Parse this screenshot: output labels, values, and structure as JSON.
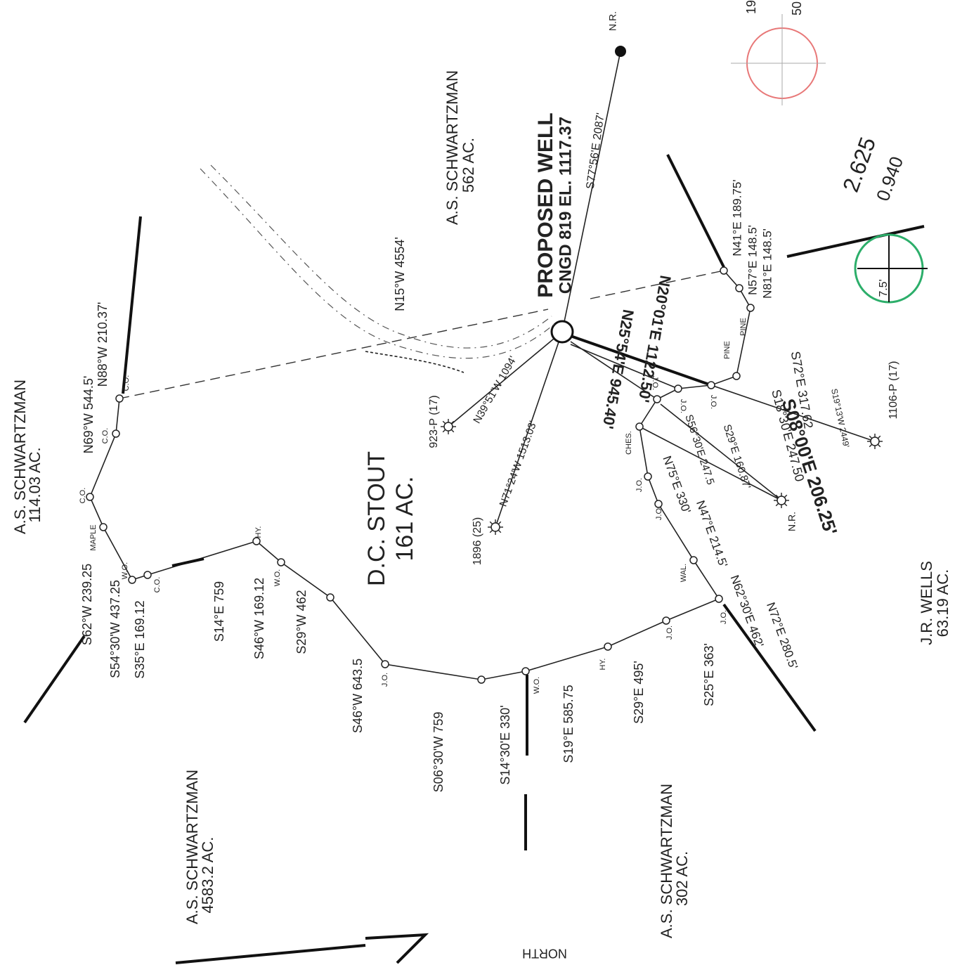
{
  "tracts": [
    {
      "name": "A.S. SCHWARTZMAN",
      "area": "562 AC."
    },
    {
      "name": "A.S. SCHWARTZMAN",
      "area": "114.03 AC."
    },
    {
      "name": "D.C. STOUT",
      "area": "161 AC."
    },
    {
      "name": "A.S. SCHWARTZMAN",
      "area": "4583.2 AC."
    },
    {
      "name": "A.S. SCHWARTZMAN",
      "area": "302 AC."
    },
    {
      "name": "J.R. WELLS",
      "area": "63.19 AC."
    }
  ],
  "well": {
    "label": "PROPOSED WELL",
    "elevation": "CNGD 819 EL. 1117.37"
  },
  "ties": [
    "N.R.",
    "S77°56'E 2087'",
    "N15°W 4554'",
    "N20°01'E 1122.50'",
    "N25°54'E 945.40'",
    "N39°51'W 1094'",
    "N71°24'W 1513.03'",
    "S72°E 317.62",
    "S19°13'W 2449'",
    "S18°30'E 247.50",
    "S08°00'E 206.25'",
    "S29°E 160.87'",
    "S56°30'E 247.5",
    "N.R."
  ],
  "neighbor_wells": [
    "923-P (17)",
    "1896 (25)",
    "1106-P (17)"
  ],
  "boundary_calls": [
    "N69°W 544.5'",
    "N88°W 210.37'",
    "N41°E 189.75'",
    "N57°E 148.5'",
    "N81°E 148.5'",
    "N75°E 330'",
    "N47°E 214.5'",
    "N62°30'E 462'",
    "N72°E 280.5'",
    "S62°W 239.25",
    "S54°30'W 437.25",
    "S35°E 169.12",
    "S14°E 759",
    "S46°W 169.12",
    "S29°W 462",
    "S46°W 643.5",
    "S06°30'W 759",
    "S14°30'E 330'",
    "S19°E 585.75",
    "S29°E 495'",
    "S25°E 363'"
  ],
  "corner_labels": [
    "C.O.",
    "C.O.",
    "C.O.",
    "MAPLE",
    "W.O.",
    "C.O.",
    "HY.",
    "W.O.",
    "J.O.",
    "W.O.",
    "HY.",
    "J.O.",
    "J.O.",
    "WAL.",
    "J.O.",
    "J.O.",
    "CHES.",
    "J.O.",
    "J.O.",
    "J.O.",
    "PINE",
    "PINE"
  ],
  "north": "NORTH",
  "handwritten": [
    "2.625",
    "0.940",
    "7.5'",
    "19",
    "50"
  ]
}
